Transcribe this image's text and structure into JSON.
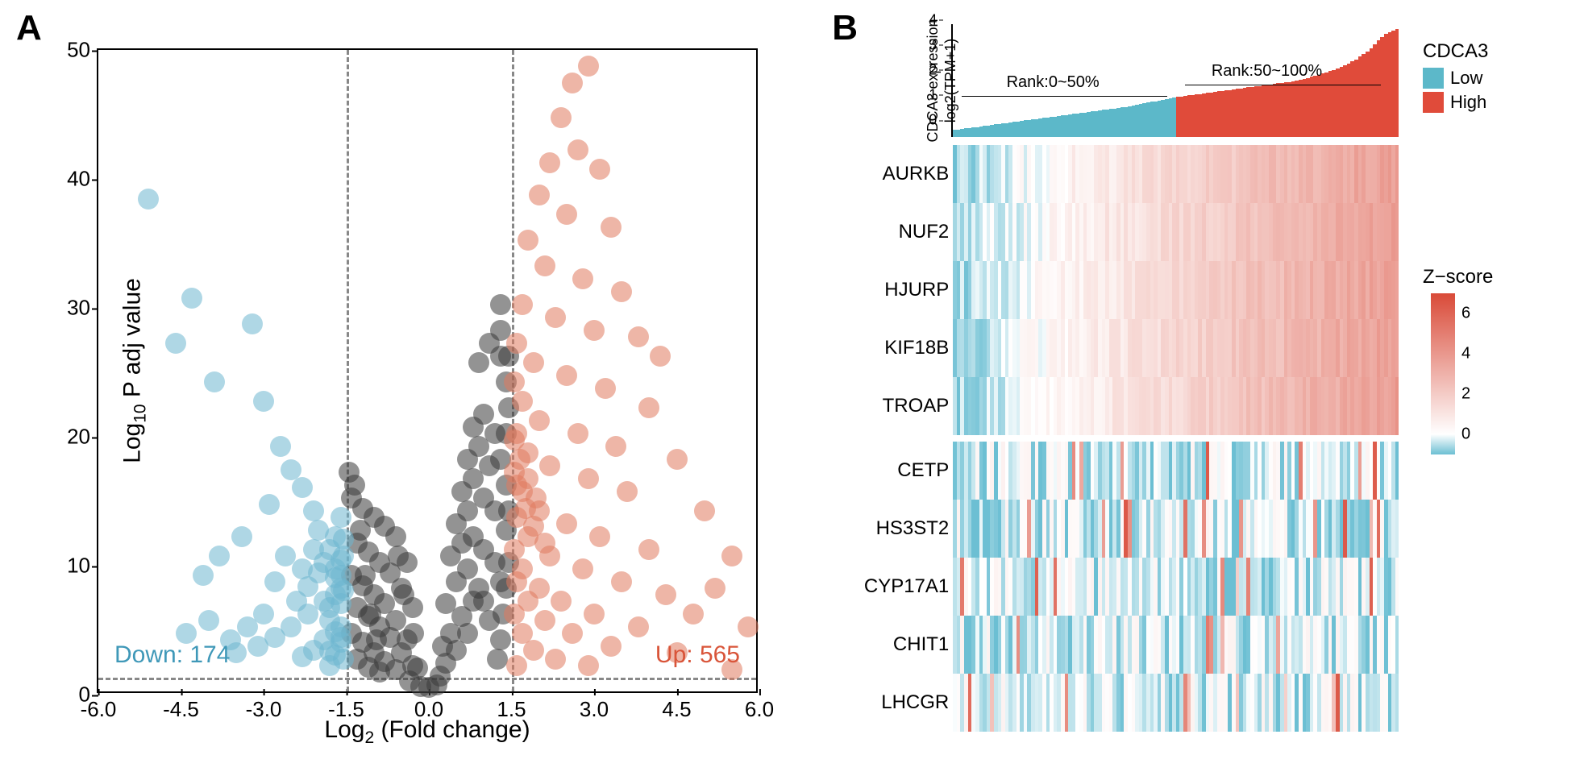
{
  "panelA": {
    "label": "A",
    "volcano": {
      "type": "scatter",
      "xlabel_html": "Log<sub>2</sub> (Fold change)",
      "ylabel_html": "Log<sub>10</sub> P adj value",
      "xlim": [
        -6,
        6
      ],
      "ylim": [
        0,
        50
      ],
      "xticks": [
        -6.0,
        -4.5,
        -3.0,
        -1.5,
        0.0,
        1.5,
        3.0,
        4.5,
        6.0
      ],
      "yticks": [
        0,
        10,
        20,
        30,
        40,
        50
      ],
      "vthresh": [
        -1.5,
        1.5
      ],
      "hthresh": 1.3,
      "colors": {
        "down": "#6db7d0",
        "ns": "#3a3a3a",
        "up": "#e07a5f"
      },
      "point_radius": 13,
      "point_opacity": 0.55,
      "down_label": "Down: 174",
      "up_label": "Up: 565",
      "down_label_color": "#3f98b8",
      "up_label_color": "#d9553a",
      "points_down": [
        [
          -5.1,
          38.2
        ],
        [
          -4.3,
          30.5
        ],
        [
          -4.6,
          27.0
        ],
        [
          -3.9,
          24.0
        ],
        [
          -3.2,
          28.5
        ],
        [
          -3.0,
          22.5
        ],
        [
          -2.7,
          19.0
        ],
        [
          -2.5,
          17.2
        ],
        [
          -2.3,
          15.8
        ],
        [
          -2.1,
          14.0
        ],
        [
          -2.9,
          14.5
        ],
        [
          -3.4,
          12.0
        ],
        [
          -3.8,
          10.5
        ],
        [
          -4.1,
          9.0
        ],
        [
          -2.0,
          12.5
        ],
        [
          -1.8,
          11.0
        ],
        [
          -1.7,
          9.5
        ],
        [
          -1.6,
          8.0
        ],
        [
          -1.9,
          7.0
        ],
        [
          -2.2,
          6.0
        ],
        [
          -2.5,
          5.0
        ],
        [
          -2.8,
          4.2
        ],
        [
          -3.1,
          3.5
        ],
        [
          -3.5,
          3.0
        ],
        [
          -1.6,
          13.5
        ],
        [
          -1.7,
          12.0
        ],
        [
          -1.8,
          6.5
        ],
        [
          -1.6,
          5.0
        ],
        [
          -1.9,
          4.0
        ],
        [
          -2.1,
          3.2
        ],
        [
          -2.3,
          2.7
        ],
        [
          -1.55,
          10.5
        ],
        [
          -1.6,
          9.0
        ],
        [
          -1.7,
          7.5
        ],
        [
          -1.8,
          5.5
        ],
        [
          -1.6,
          3.8
        ],
        [
          -1.55,
          2.5
        ],
        [
          -1.6,
          6.8
        ],
        [
          -1.7,
          4.6
        ],
        [
          -1.8,
          3.1
        ],
        [
          -2.0,
          9.2
        ],
        [
          -2.2,
          8.1
        ],
        [
          -2.4,
          7.0
        ],
        [
          -2.6,
          10.5
        ],
        [
          -2.8,
          8.5
        ],
        [
          -3.0,
          6.0
        ],
        [
          -3.3,
          5.0
        ],
        [
          -3.6,
          4.0
        ],
        [
          -4.0,
          5.5
        ],
        [
          -4.4,
          4.5
        ],
        [
          -1.55,
          7.8
        ],
        [
          -1.6,
          4.2
        ],
        [
          -1.7,
          2.8
        ],
        [
          -1.8,
          2.0
        ],
        [
          -1.55,
          11.8
        ],
        [
          -1.6,
          10.2
        ],
        [
          -1.7,
          8.8
        ],
        [
          -1.9,
          10.0
        ],
        [
          -2.1,
          11.0
        ],
        [
          -2.3,
          9.5
        ]
      ],
      "points_up": [
        [
          2.9,
          48.5
        ],
        [
          2.6,
          47.2
        ],
        [
          2.4,
          44.5
        ],
        [
          2.7,
          42.0
        ],
        [
          3.1,
          40.5
        ],
        [
          2.2,
          41.0
        ],
        [
          2.0,
          38.5
        ],
        [
          2.5,
          37.0
        ],
        [
          3.3,
          36.0
        ],
        [
          1.8,
          35.0
        ],
        [
          2.1,
          33.0
        ],
        [
          2.8,
          32.0
        ],
        [
          3.5,
          31.0
        ],
        [
          1.7,
          30.0
        ],
        [
          2.3,
          29.0
        ],
        [
          3.0,
          28.0
        ],
        [
          3.8,
          27.5
        ],
        [
          4.2,
          26.0
        ],
        [
          1.6,
          27.0
        ],
        [
          1.9,
          25.5
        ],
        [
          2.5,
          24.5
        ],
        [
          3.2,
          23.5
        ],
        [
          4.0,
          22.0
        ],
        [
          5.5,
          10.5
        ],
        [
          1.55,
          24.0
        ],
        [
          1.7,
          22.5
        ],
        [
          2.0,
          21.0
        ],
        [
          2.7,
          20.0
        ],
        [
          3.4,
          19.0
        ],
        [
          4.5,
          18.0
        ],
        [
          1.6,
          20.0
        ],
        [
          1.8,
          18.5
        ],
        [
          2.2,
          17.5
        ],
        [
          2.9,
          16.5
        ],
        [
          3.6,
          15.5
        ],
        [
          5.0,
          14.0
        ],
        [
          1.55,
          17.0
        ],
        [
          1.7,
          15.5
        ],
        [
          2.0,
          14.0
        ],
        [
          2.5,
          13.0
        ],
        [
          3.1,
          12.0
        ],
        [
          4.0,
          11.0
        ],
        [
          1.6,
          13.5
        ],
        [
          1.8,
          12.0
        ],
        [
          2.2,
          10.5
        ],
        [
          2.8,
          9.5
        ],
        [
          3.5,
          8.5
        ],
        [
          4.3,
          7.5
        ],
        [
          1.55,
          11.0
        ],
        [
          1.7,
          9.5
        ],
        [
          2.0,
          8.0
        ],
        [
          2.4,
          7.0
        ],
        [
          3.0,
          6.0
        ],
        [
          3.8,
          5.0
        ],
        [
          1.6,
          8.5
        ],
        [
          1.8,
          7.0
        ],
        [
          2.1,
          5.5
        ],
        [
          2.6,
          4.5
        ],
        [
          3.3,
          3.5
        ],
        [
          4.5,
          3.0
        ],
        [
          1.55,
          6.0
        ],
        [
          1.7,
          4.5
        ],
        [
          1.9,
          3.2
        ],
        [
          2.3,
          2.5
        ],
        [
          2.9,
          2.0
        ],
        [
          5.8,
          5.0
        ],
        [
          1.6,
          16.0
        ],
        [
          1.75,
          14.2
        ],
        [
          1.9,
          12.8
        ],
        [
          2.1,
          11.5
        ],
        [
          5.2,
          8.0
        ],
        [
          4.8,
          6.0
        ],
        [
          1.55,
          19.5
        ],
        [
          1.65,
          18.0
        ],
        [
          1.8,
          16.5
        ],
        [
          1.95,
          15.0
        ],
        [
          5.5,
          1.7
        ],
        [
          1.6,
          2.0
        ]
      ],
      "points_ns": [
        [
          -1.4,
          15.0
        ],
        [
          -1.2,
          14.2
        ],
        [
          -1.0,
          13.5
        ],
        [
          -0.8,
          12.8
        ],
        [
          -0.6,
          12.0
        ],
        [
          -0.4,
          10.0
        ],
        [
          -1.3,
          11.5
        ],
        [
          -1.1,
          10.8
        ],
        [
          -0.9,
          10.0
        ],
        [
          -0.7,
          9.2
        ],
        [
          -0.5,
          8.0
        ],
        [
          -0.3,
          6.5
        ],
        [
          -1.4,
          9.0
        ],
        [
          -1.2,
          8.2
        ],
        [
          -1.0,
          7.5
        ],
        [
          -0.8,
          6.8
        ],
        [
          -0.6,
          5.5
        ],
        [
          -0.4,
          4.0
        ],
        [
          -1.3,
          6.5
        ],
        [
          -1.1,
          5.8
        ],
        [
          -0.9,
          5.0
        ],
        [
          -0.7,
          4.2
        ],
        [
          -0.5,
          3.0
        ],
        [
          -0.3,
          2.0
        ],
        [
          -1.4,
          4.5
        ],
        [
          -1.2,
          3.8
        ],
        [
          -1.0,
          3.0
        ],
        [
          -0.8,
          2.3
        ],
        [
          -0.6,
          1.7
        ],
        [
          -0.35,
          0.8
        ],
        [
          -1.3,
          2.5
        ],
        [
          -1.1,
          1.9
        ],
        [
          -0.9,
          1.5
        ],
        [
          -0.15,
          0.4
        ],
        [
          0.0,
          0.3
        ],
        [
          0.15,
          0.5
        ],
        [
          0.3,
          2.2
        ],
        [
          0.4,
          4.5
        ],
        [
          0.5,
          3.2
        ],
        [
          0.6,
          5.8
        ],
        [
          0.7,
          4.5
        ],
        [
          0.8,
          7.0
        ],
        [
          0.3,
          6.8
        ],
        [
          0.5,
          8.5
        ],
        [
          0.7,
          9.5
        ],
        [
          0.9,
          8.0
        ],
        [
          1.0,
          7.0
        ],
        [
          1.1,
          5.5
        ],
        [
          0.4,
          10.5
        ],
        [
          0.6,
          11.5
        ],
        [
          0.8,
          12.0
        ],
        [
          1.0,
          11.0
        ],
        [
          1.2,
          10.0
        ],
        [
          1.3,
          8.5
        ],
        [
          0.5,
          13.0
        ],
        [
          0.7,
          14.0
        ],
        [
          0.9,
          25.5
        ],
        [
          1.1,
          27.0
        ],
        [
          1.3,
          26.0
        ],
        [
          1.4,
          12.5
        ],
        [
          0.6,
          15.5
        ],
        [
          0.8,
          16.5
        ],
        [
          1.0,
          15.0
        ],
        [
          1.2,
          14.0
        ],
        [
          1.4,
          16.0
        ],
        [
          1.3,
          18.0
        ],
        [
          0.7,
          18.0
        ],
        [
          0.9,
          19.0
        ],
        [
          1.1,
          17.5
        ],
        [
          1.3,
          28.0
        ],
        [
          1.4,
          20.0
        ],
        [
          1.45,
          22.0
        ],
        [
          0.8,
          20.5
        ],
        [
          1.0,
          21.5
        ],
        [
          1.2,
          20.0
        ],
        [
          1.4,
          24.0
        ],
        [
          1.45,
          26.0
        ],
        [
          1.3,
          30.0
        ],
        [
          -1.45,
          17.0
        ],
        [
          -1.35,
          16.0
        ],
        [
          -1.25,
          12.5
        ],
        [
          -1.15,
          9.0
        ],
        [
          -1.05,
          6.0
        ],
        [
          -0.95,
          4.0
        ],
        [
          -0.55,
          10.5
        ],
        [
          -0.45,
          7.5
        ],
        [
          -0.28,
          4.5
        ],
        [
          -0.2,
          1.8
        ],
        [
          0.2,
          1.2
        ],
        [
          0.25,
          3.5
        ],
        [
          1.45,
          10.0
        ],
        [
          1.4,
          8.0
        ],
        [
          1.35,
          6.0
        ],
        [
          1.3,
          4.0
        ],
        [
          1.25,
          2.5
        ],
        [
          1.45,
          14.0
        ]
      ]
    }
  },
  "panelB": {
    "label": "B",
    "expression": {
      "ylabel_html": "CDCA3 expression<br>log2(TPM+1)",
      "yticks": [
        0,
        1,
        2,
        3,
        4
      ],
      "rank_left": "Rank:0~50%",
      "rank_right": "Rank:50~100%",
      "low_color": "#5cb8c9",
      "high_color": "#e04b3a",
      "n_samples": 120,
      "heights_low": [
        0.28,
        0.3,
        0.32,
        0.34,
        0.36,
        0.38,
        0.4,
        0.42,
        0.44,
        0.46,
        0.48,
        0.5,
        0.52,
        0.54,
        0.56,
        0.58,
        0.6,
        0.62,
        0.64,
        0.66,
        0.68,
        0.7,
        0.72,
        0.74,
        0.76,
        0.78,
        0.8,
        0.82,
        0.84,
        0.86,
        0.88,
        0.9,
        0.92,
        0.94,
        0.96,
        0.98,
        1.0,
        1.02,
        1.04,
        1.06,
        1.08,
        1.1,
        1.12,
        1.14,
        1.16,
        1.18,
        1.2,
        1.22,
        1.25,
        1.28,
        1.31,
        1.34,
        1.37,
        1.4,
        1.43,
        1.46,
        1.49,
        1.52,
        1.55,
        1.58
      ],
      "heights_high": [
        1.6,
        1.62,
        1.64,
        1.66,
        1.68,
        1.7,
        1.72,
        1.74,
        1.76,
        1.78,
        1.8,
        1.82,
        1.84,
        1.86,
        1.88,
        1.9,
        1.92,
        1.94,
        1.96,
        1.98,
        2.0,
        2.02,
        2.04,
        2.06,
        2.08,
        2.1,
        2.12,
        2.14,
        2.16,
        2.18,
        2.2,
        2.23,
        2.26,
        2.29,
        2.32,
        2.36,
        2.4,
        2.44,
        2.48,
        2.53,
        2.58,
        2.63,
        2.68,
        2.74,
        2.8,
        2.87,
        2.94,
        3.02,
        3.1,
        3.2,
        3.3,
        3.42,
        3.55,
        3.7,
        3.85,
        4.0,
        4.1,
        4.18,
        4.25,
        4.32
      ],
      "ymax": 4.5
    },
    "legend": {
      "title": "CDCA3",
      "items": [
        {
          "label": "Low",
          "color": "#5cb8c9"
        },
        {
          "label": "High",
          "color": "#e04b3a"
        }
      ]
    },
    "heatmap": {
      "genes_top": [
        "AURKB",
        "NUF2",
        "HJURP",
        "KIF18B",
        "TROAP"
      ],
      "genes_bottom": [
        "CETP",
        "HS3ST2",
        "CYP17A1",
        "CHIT1",
        "LHCGR"
      ],
      "n_cols": 120,
      "zscore_range": [
        -1,
        7
      ],
      "color_low": "#6cbfd3",
      "color_mid": "#ffffff",
      "color_high": "#d94a38"
    },
    "zscore_legend": {
      "title": "Z−score",
      "ticks": [
        0,
        2,
        4,
        6
      ],
      "min": -1,
      "max": 7,
      "color_low": "#6cbfd3",
      "color_mid": "#ffffff",
      "color_high": "#d94a38"
    }
  }
}
